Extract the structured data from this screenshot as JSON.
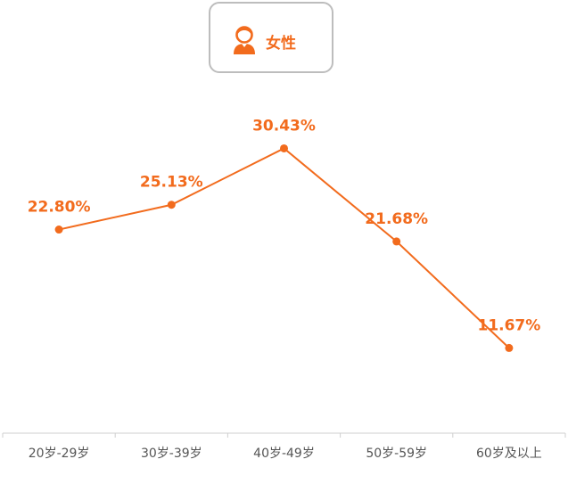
{
  "legend": {
    "label": "女性",
    "icon": "female-user-icon",
    "color": "#f26b1d"
  },
  "chart_data": {
    "type": "line",
    "categories": [
      "20岁-29岁",
      "30岁-39岁",
      "40岁-49岁",
      "50岁-59岁",
      "60岁及以上"
    ],
    "series": [
      {
        "name": "女性",
        "values": [
          22.8,
          25.13,
          30.43,
          21.68,
          11.67
        ],
        "labels": [
          "22.80%",
          "25.13%",
          "30.43%",
          "21.68%",
          "11.67%"
        ],
        "color": "#f26b1d"
      }
    ],
    "ylim": [
      5,
      36
    ],
    "grid": false,
    "legend_position": "top-center"
  }
}
